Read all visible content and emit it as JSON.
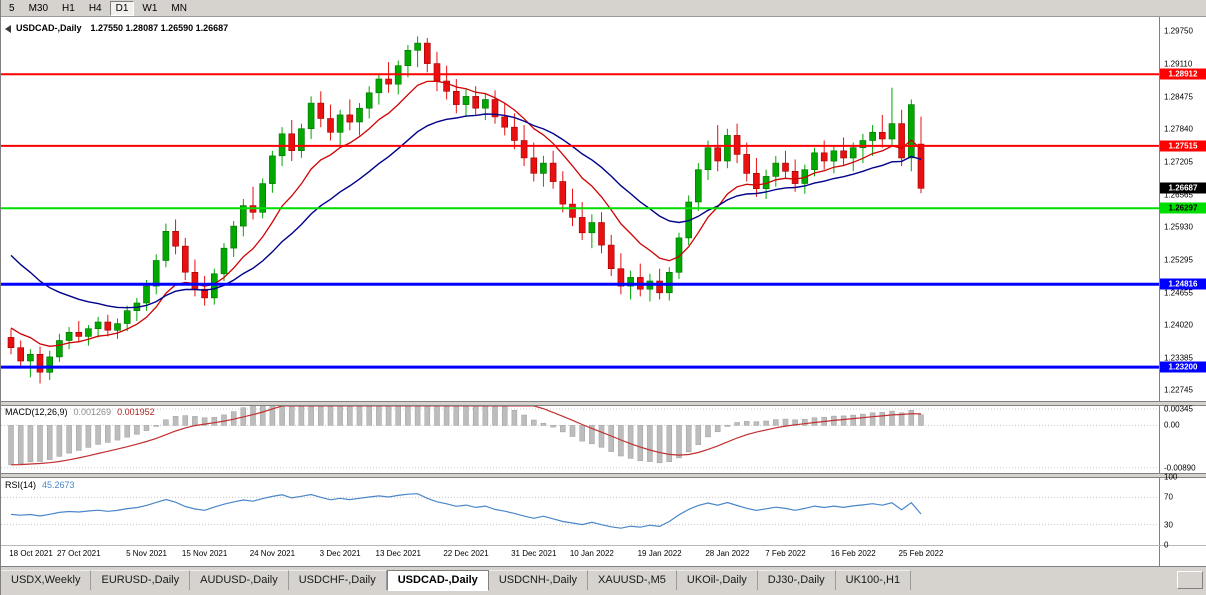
{
  "toolbar": {
    "timeframes": [
      "5",
      "M30",
      "H1",
      "H4",
      "D1",
      "W1",
      "MN"
    ],
    "active": "D1"
  },
  "panels": {
    "main": {
      "title": "USDCAD-,Daily",
      "ohlc_text": "1.27550 1.28087 1.26590 1.26687"
    },
    "macd": {
      "title": "MACD(12,26,9)",
      "value_main": "0.001269",
      "value_signal": "0.001952",
      "axis_ticks": [
        "0.00345",
        "0.00",
        "-0.00890"
      ]
    },
    "rsi": {
      "title": "RSI(14)",
      "value": "45.2673",
      "axis_ticks": [
        "100",
        "70",
        "30",
        "0"
      ]
    }
  },
  "price_scale": {
    "ticks": [
      "1.29750",
      "1.29110",
      "1.28475",
      "1.27840",
      "1.27205",
      "1.26565",
      "1.25930",
      "1.25295",
      "1.24655",
      "1.24020",
      "1.23385",
      "1.22745"
    ],
    "min": 1.2252,
    "max": 1.2999,
    "current": "1.26687"
  },
  "levels": [
    {
      "price": 1.28912,
      "label": "1.28912",
      "color": "#ff0000",
      "text": "#ffffff",
      "width": 2
    },
    {
      "price": 1.27515,
      "label": "1.27515",
      "color": "#ff0000",
      "text": "#ffffff",
      "width": 2
    },
    {
      "price": 1.26297,
      "label": "1.26297",
      "color": "#00dd00",
      "text": "#000000",
      "width": 2
    },
    {
      "price": 1.24816,
      "label": "1.24816",
      "color": "#0000ff",
      "text": "#ffffff",
      "width": 3
    },
    {
      "price": 1.232,
      "label": "1.23200",
      "color": "#0000ff",
      "text": "#ffffff",
      "width": 3
    }
  ],
  "colors": {
    "bull": "#00a800",
    "bull_border": "#006e00",
    "bear": "#e81010",
    "bear_border": "#9e0000",
    "ma_fast": "#d00000",
    "ma_slow": "#00008b",
    "macd_hist": "#bdbdbd",
    "macd_hist_border": "#9e9e9e",
    "macd_signal": "#c03030",
    "rsi_line": "#4a86c8",
    "current_price_bg": "#000000",
    "current_price_text": "#ffffff"
  },
  "chart_data": {
    "type": "candlestick",
    "title": "USDCAD-,Daily",
    "ohlc_current": {
      "open": 1.2755,
      "high": 1.28087,
      "low": 1.2659,
      "close": 1.26687
    },
    "y_range": [
      1.2252,
      1.2999
    ],
    "x_tick_labels": [
      "18 Oct 2021",
      "27 Oct 2021",
      "5 Nov 2021",
      "15 Nov 2021",
      "24 Nov 2021",
      "3 Dec 2021",
      "13 Dec 2021",
      "22 Dec 2021",
      "31 Dec 2021",
      "10 Jan 2022",
      "19 Jan 2022",
      "28 Jan 2022",
      "7 Feb 2022",
      "16 Feb 2022",
      "25 Feb 2022"
    ],
    "x_tick_indices": [
      0,
      7,
      14,
      20,
      27,
      34,
      40,
      47,
      54,
      60,
      67,
      74,
      80,
      87,
      94
    ],
    "horizontal_levels": [
      {
        "price": 1.28912,
        "color": "red"
      },
      {
        "price": 1.27515,
        "color": "red"
      },
      {
        "price": 1.26297,
        "color": "green"
      },
      {
        "price": 1.24816,
        "color": "blue"
      },
      {
        "price": 1.232,
        "color": "blue"
      }
    ],
    "indicators": [
      {
        "name": "MACD",
        "params": [
          12,
          26,
          9
        ],
        "current_values": [
          0.001269,
          0.001952
        ],
        "axis_ticks": [
          0.00345,
          0,
          -0.0089
        ]
      },
      {
        "name": "RSI",
        "params": [
          14
        ],
        "current_value": 45.2673,
        "axis_ticks": [
          100,
          70,
          30,
          0
        ]
      }
    ],
    "candles_ohlc": [
      [
        1.2378,
        1.2395,
        1.2345,
        1.2358
      ],
      [
        1.2358,
        1.2372,
        1.2318,
        1.2332
      ],
      [
        1.2332,
        1.2355,
        1.23,
        1.2345
      ],
      [
        1.2345,
        1.236,
        1.2288,
        1.231
      ],
      [
        1.231,
        1.2352,
        1.2295,
        1.234
      ],
      [
        1.234,
        1.2385,
        1.233,
        1.2372
      ],
      [
        1.2372,
        1.2398,
        1.2355,
        1.2388
      ],
      [
        1.2388,
        1.241,
        1.2368,
        1.238
      ],
      [
        1.238,
        1.2402,
        1.2362,
        1.2395
      ],
      [
        1.2395,
        1.2418,
        1.2378,
        1.2408
      ],
      [
        1.2408,
        1.2422,
        1.238,
        1.2392
      ],
      [
        1.2392,
        1.2415,
        1.2375,
        1.2405
      ],
      [
        1.2405,
        1.244,
        1.239,
        1.243
      ],
      [
        1.243,
        1.2455,
        1.241,
        1.2445
      ],
      [
        1.2445,
        1.249,
        1.243,
        1.2478
      ],
      [
        1.2478,
        1.254,
        1.2462,
        1.2528
      ],
      [
        1.2528,
        1.26,
        1.2515,
        1.2585
      ],
      [
        1.2585,
        1.2608,
        1.254,
        1.2556
      ],
      [
        1.2556,
        1.2572,
        1.249,
        1.2505
      ],
      [
        1.2505,
        1.253,
        1.2458,
        1.2472
      ],
      [
        1.2472,
        1.2498,
        1.244,
        1.2455
      ],
      [
        1.2455,
        1.2512,
        1.2442,
        1.2502
      ],
      [
        1.2502,
        1.2562,
        1.2488,
        1.2552
      ],
      [
        1.2552,
        1.2605,
        1.2535,
        1.2595
      ],
      [
        1.2595,
        1.2648,
        1.2575,
        1.2635
      ],
      [
        1.2635,
        1.2672,
        1.2608,
        1.2622
      ],
      [
        1.2622,
        1.2688,
        1.261,
        1.2678
      ],
      [
        1.2678,
        1.2742,
        1.266,
        1.2732
      ],
      [
        1.2732,
        1.2788,
        1.2712,
        1.2775
      ],
      [
        1.2775,
        1.2802,
        1.2722,
        1.2742
      ],
      [
        1.2742,
        1.2795,
        1.2728,
        1.2785
      ],
      [
        1.2785,
        1.2848,
        1.2765,
        1.2835
      ],
      [
        1.2835,
        1.2858,
        1.2788,
        1.2805
      ],
      [
        1.2805,
        1.2832,
        1.2762,
        1.2778
      ],
      [
        1.2778,
        1.2822,
        1.2752,
        1.2812
      ],
      [
        1.2812,
        1.2842,
        1.2782,
        1.2798
      ],
      [
        1.2798,
        1.2835,
        1.2772,
        1.2825
      ],
      [
        1.2825,
        1.2868,
        1.2805,
        1.2855
      ],
      [
        1.2855,
        1.2892,
        1.2832,
        1.2882
      ],
      [
        1.2882,
        1.2915,
        1.2855,
        1.2872
      ],
      [
        1.2872,
        1.2918,
        1.2852,
        1.2908
      ],
      [
        1.2908,
        1.2948,
        1.2885,
        1.2938
      ],
      [
        1.2938,
        1.2965,
        1.2905,
        1.2952
      ],
      [
        1.2952,
        1.2962,
        1.2895,
        1.2912
      ],
      [
        1.2912,
        1.2935,
        1.2858,
        1.2878
      ],
      [
        1.2878,
        1.2908,
        1.2842,
        1.2858
      ],
      [
        1.2858,
        1.2882,
        1.2815,
        1.2832
      ],
      [
        1.2832,
        1.2862,
        1.2808,
        1.2848
      ],
      [
        1.2848,
        1.2868,
        1.2812,
        1.2825
      ],
      [
        1.2825,
        1.2855,
        1.2802,
        1.2842
      ],
      [
        1.2842,
        1.286,
        1.2795,
        1.2808
      ],
      [
        1.2808,
        1.2835,
        1.2772,
        1.2788
      ],
      [
        1.2788,
        1.2815,
        1.2745,
        1.2762
      ],
      [
        1.2762,
        1.2792,
        1.2712,
        1.2728
      ],
      [
        1.2728,
        1.2758,
        1.2682,
        1.2698
      ],
      [
        1.2698,
        1.2732,
        1.2672,
        1.2718
      ],
      [
        1.2718,
        1.2742,
        1.2668,
        1.2682
      ],
      [
        1.2682,
        1.2702,
        1.2622,
        1.2638
      ],
      [
        1.2638,
        1.2668,
        1.2595,
        1.2612
      ],
      [
        1.2612,
        1.2642,
        1.2568,
        1.2582
      ],
      [
        1.2582,
        1.2618,
        1.2552,
        1.2602
      ],
      [
        1.2602,
        1.2622,
        1.2542,
        1.2558
      ],
      [
        1.2558,
        1.2578,
        1.2498,
        1.2512
      ],
      [
        1.2512,
        1.2542,
        1.2462,
        1.2478
      ],
      [
        1.2478,
        1.2508,
        1.2452,
        1.2495
      ],
      [
        1.2495,
        1.2522,
        1.2458,
        1.2472
      ],
      [
        1.2472,
        1.2502,
        1.2448,
        1.2488
      ],
      [
        1.2488,
        1.2512,
        1.2452,
        1.2465
      ],
      [
        1.2465,
        1.2515,
        1.245,
        1.2505
      ],
      [
        1.2505,
        1.2582,
        1.2492,
        1.2572
      ],
      [
        1.2572,
        1.2655,
        1.2558,
        1.2642
      ],
      [
        1.2642,
        1.2718,
        1.2625,
        1.2705
      ],
      [
        1.2705,
        1.2762,
        1.2685,
        1.2748
      ],
      [
        1.2748,
        1.2792,
        1.2702,
        1.2722
      ],
      [
        1.2722,
        1.2785,
        1.2708,
        1.2772
      ],
      [
        1.2772,
        1.2795,
        1.2718,
        1.2735
      ],
      [
        1.2735,
        1.2758,
        1.2682,
        1.2698
      ],
      [
        1.2698,
        1.2728,
        1.2652,
        1.2668
      ],
      [
        1.2668,
        1.2705,
        1.2648,
        1.2692
      ],
      [
        1.2692,
        1.2732,
        1.2672,
        1.2718
      ],
      [
        1.2718,
        1.2742,
        1.2688,
        1.2702
      ],
      [
        1.2702,
        1.2725,
        1.2662,
        1.2678
      ],
      [
        1.2678,
        1.2715,
        1.2658,
        1.2705
      ],
      [
        1.2705,
        1.2748,
        1.2692,
        1.2738
      ],
      [
        1.2738,
        1.2762,
        1.2705,
        1.2722
      ],
      [
        1.2722,
        1.2752,
        1.2698,
        1.2742
      ],
      [
        1.2742,
        1.2768,
        1.2712,
        1.2728
      ],
      [
        1.2728,
        1.2758,
        1.2702,
        1.2748
      ],
      [
        1.2748,
        1.2775,
        1.2718,
        1.2762
      ],
      [
        1.2762,
        1.2792,
        1.2732,
        1.2778
      ],
      [
        1.2778,
        1.2812,
        1.2748,
        1.2765
      ],
      [
        1.2765,
        1.2865,
        1.2752,
        1.2795
      ],
      [
        1.2795,
        1.2822,
        1.2712,
        1.2728
      ],
      [
        1.2728,
        1.2842,
        1.2702,
        1.2832
      ],
      [
        1.2755,
        1.28087,
        1.2659,
        1.26687
      ]
    ]
  },
  "tabs": {
    "items": [
      "USDX,Weekly",
      "EURUSD-,Daily",
      "AUDUSD-,Daily",
      "USDCHF-,Daily",
      "USDCAD-,Daily",
      "USDCNH-,Daily",
      "XAUUSD-,M5",
      "UKOil-,Daily",
      "DJ30-,Daily",
      "UK100-,H1"
    ],
    "active": "USDCAD-,Daily"
  }
}
